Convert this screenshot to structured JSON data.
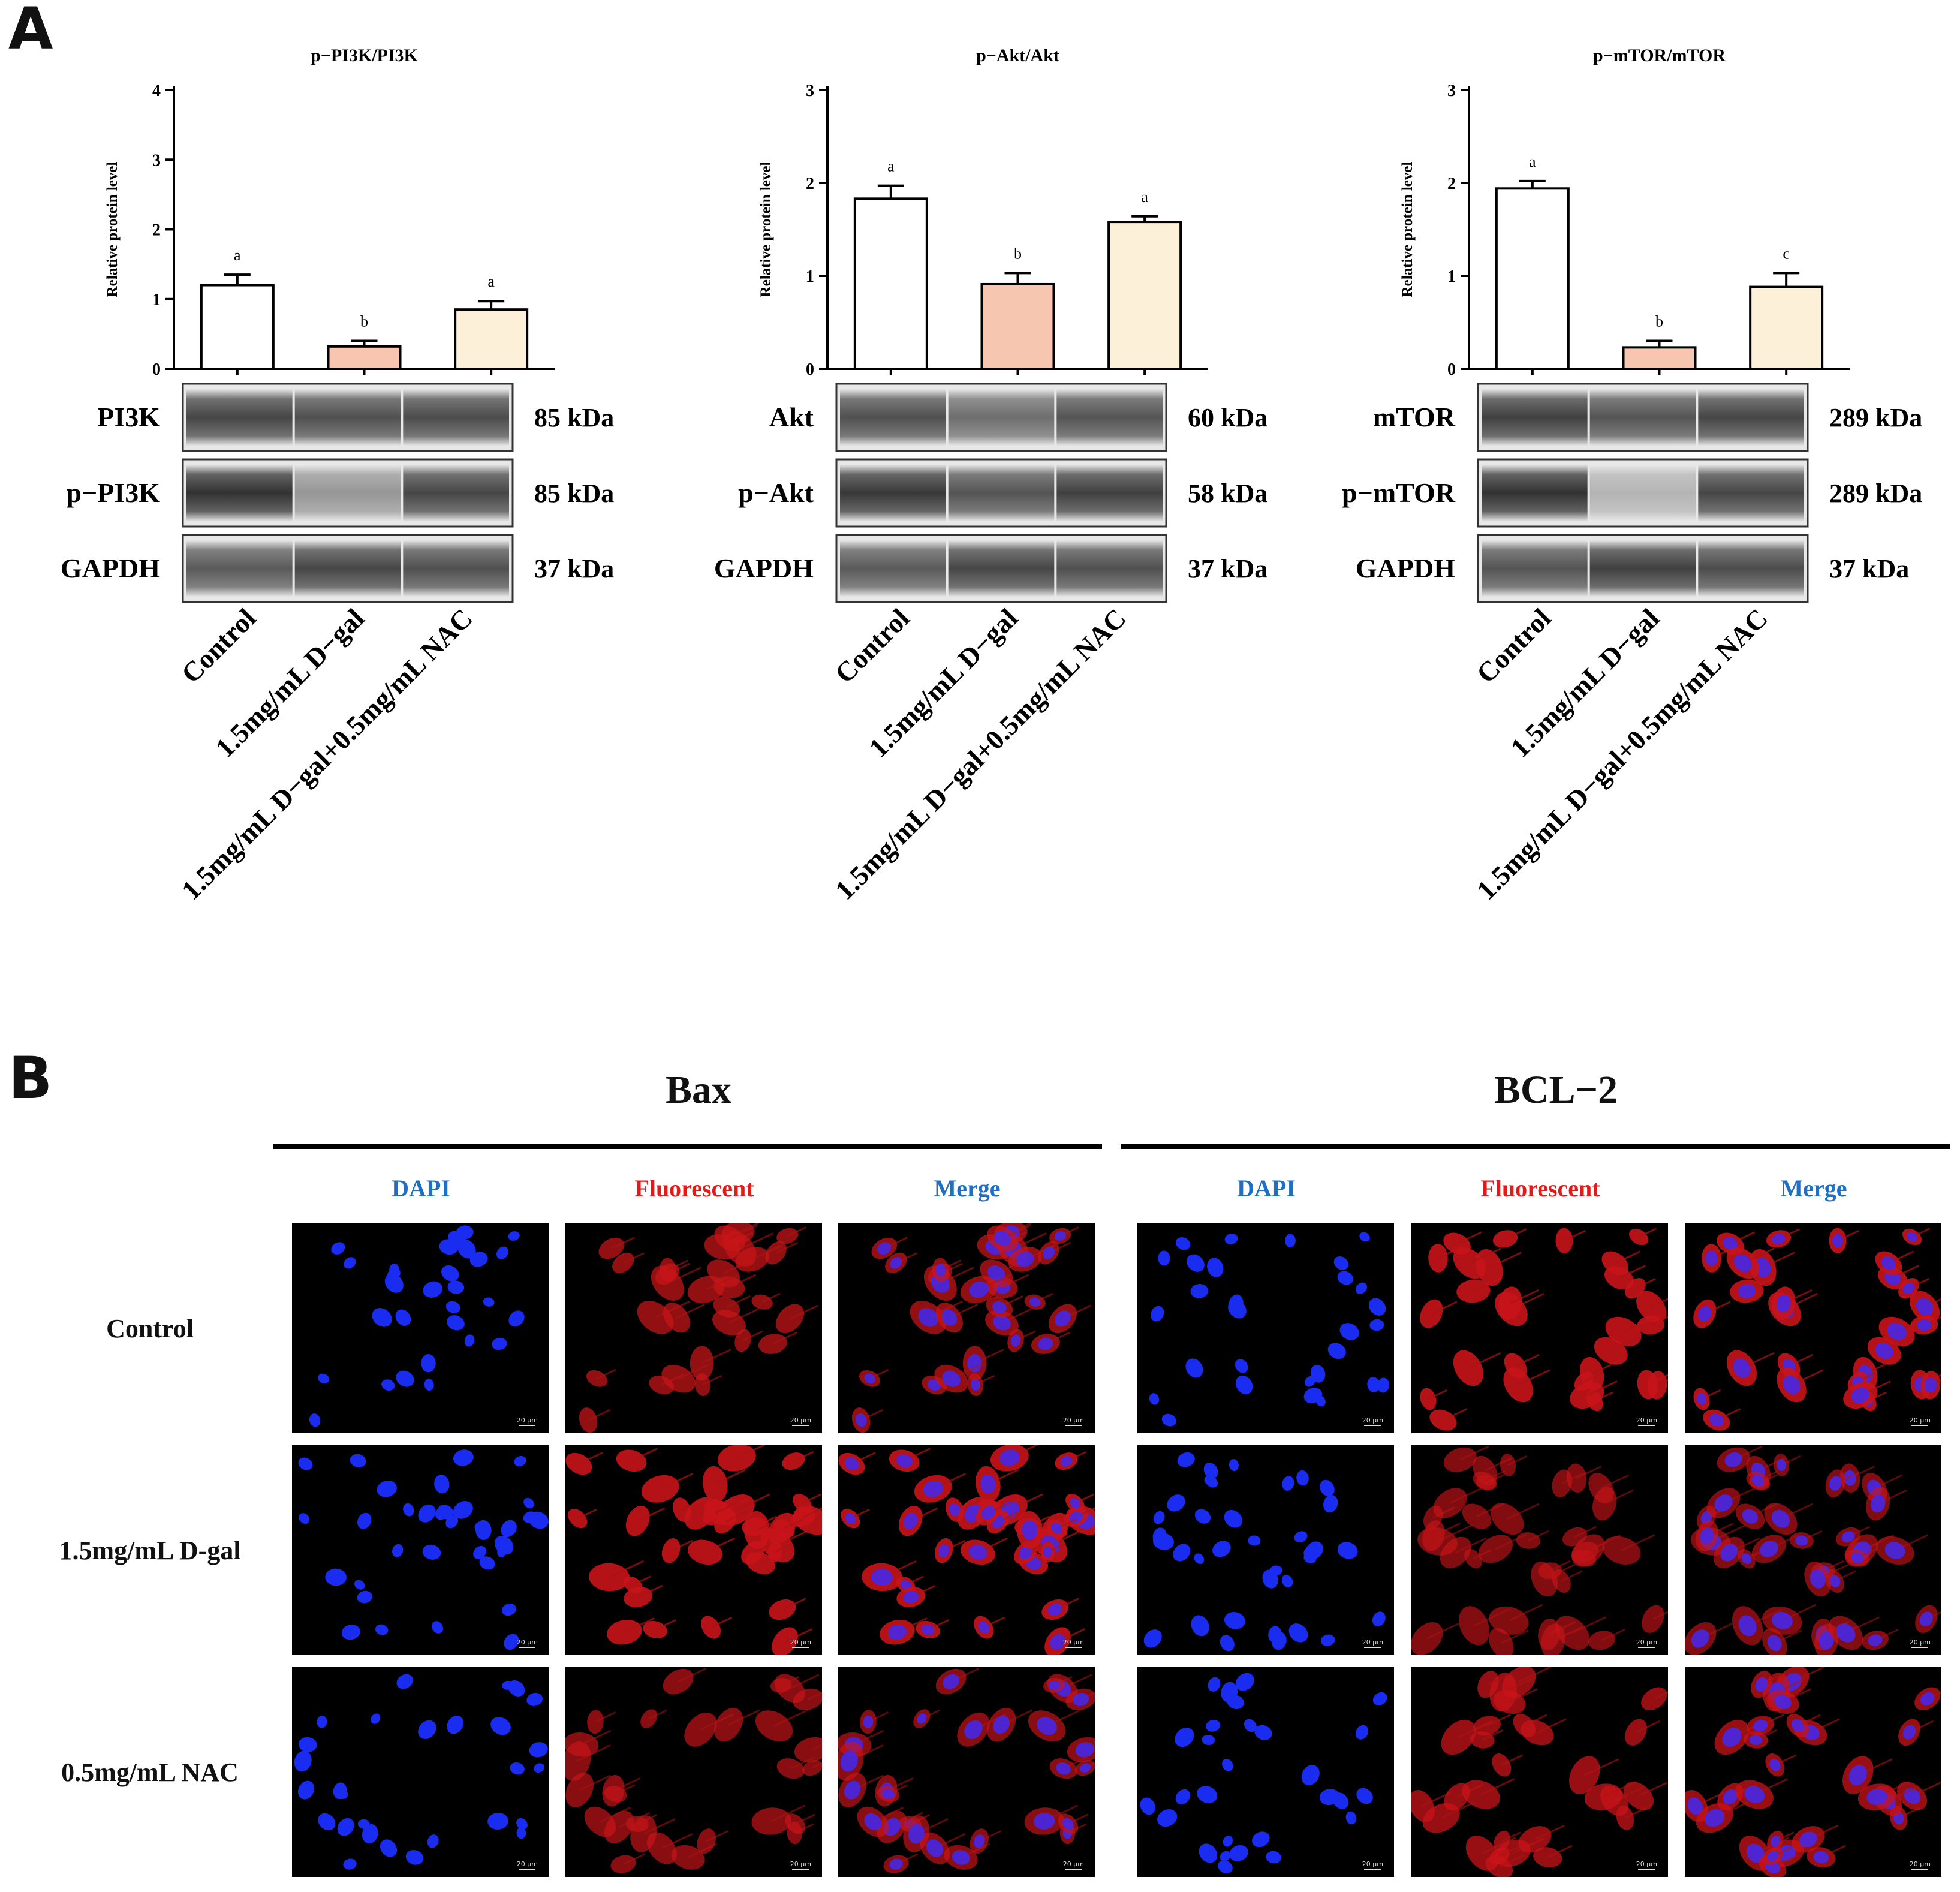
{
  "panel_a": {
    "letter": "A"
  },
  "panel_b": {
    "letter": "B"
  },
  "chart_data": [
    {
      "type": "bar",
      "title": "p−PI3K/PI3K",
      "ylabel": "Relative protein level",
      "ylim": [
        0,
        4
      ],
      "yticks": [
        "0",
        "1",
        "2",
        "3",
        "4"
      ],
      "categories": [
        "Control",
        "1.5mg/mL D−gal",
        "1.5mg/mL D−gal+0.5mg/mL NAC"
      ],
      "values": [
        1.2,
        0.32,
        0.85
      ],
      "errors": [
        0.15,
        0.08,
        0.12
      ],
      "letters": [
        "a",
        "b",
        "a"
      ],
      "colors": [
        "#ffffff",
        "#f7c6b0",
        "#fdf0d8"
      ],
      "blots": [
        {
          "name": "PI3K",
          "kda": "85 kDa",
          "intensity": [
            0.85,
            0.8,
            0.82
          ]
        },
        {
          "name": "p−PI3K",
          "kda": "85 kDa",
          "intensity": [
            0.95,
            0.45,
            0.85
          ]
        },
        {
          "name": "GAPDH",
          "kda": "37 kDa",
          "intensity": [
            0.75,
            0.85,
            0.8
          ]
        }
      ]
    },
    {
      "type": "bar",
      "title": "p−Akt/Akt",
      "ylabel": "Relative protein level",
      "ylim": [
        0,
        3
      ],
      "yticks": [
        "0",
        "1",
        "2",
        "3"
      ],
      "categories": [
        "Control",
        "1.5mg/mL D−gal",
        "1.5mg/mL D−gal+0.5mg/mL NAC"
      ],
      "values": [
        1.83,
        0.91,
        1.58
      ],
      "errors": [
        0.14,
        0.12,
        0.06
      ],
      "letters": [
        "a",
        "b",
        "a"
      ],
      "colors": [
        "#ffffff",
        "#f7c6b0",
        "#fdf0d8"
      ],
      "blots": [
        {
          "name": "Akt",
          "kda": "60 kDa",
          "intensity": [
            0.8,
            0.65,
            0.78
          ]
        },
        {
          "name": "p−Akt",
          "kda": "58 kDa",
          "intensity": [
            0.92,
            0.78,
            0.88
          ]
        },
        {
          "name": "GAPDH",
          "kda": "37 kDa",
          "intensity": [
            0.75,
            0.85,
            0.8
          ]
        }
      ]
    },
    {
      "type": "bar",
      "title": "p−mTOR/mTOR",
      "ylabel": "Relative protein level",
      "ylim": [
        0,
        3
      ],
      "yticks": [
        "0",
        "1",
        "2",
        "3"
      ],
      "categories": [
        "Control",
        "1.5mg/mL D−gal",
        "1.5mg/mL D−gal+0.5mg/mL NAC"
      ],
      "values": [
        1.94,
        0.23,
        0.88
      ],
      "errors": [
        0.08,
        0.07,
        0.15
      ],
      "letters": [
        "a",
        "b",
        "c"
      ],
      "colors": [
        "#ffffff",
        "#f7c6b0",
        "#fdf0d8"
      ],
      "blots": [
        {
          "name": "mTOR",
          "kda": "289 kDa",
          "intensity": [
            0.88,
            0.78,
            0.85
          ]
        },
        {
          "name": "p−mTOR",
          "kda": "289 kDa",
          "intensity": [
            0.95,
            0.3,
            0.85
          ]
        },
        {
          "name": "GAPDH",
          "kda": "37 kDa",
          "intensity": [
            0.78,
            0.88,
            0.82
          ]
        }
      ]
    }
  ],
  "immunofluorescence": {
    "groups": [
      {
        "title": "Bax",
        "columns": [
          "DAPI",
          "Fluorescent",
          "Merge"
        ]
      },
      {
        "title": "BCL−2",
        "columns": [
          "DAPI",
          "Fluorescent",
          "Merge"
        ]
      }
    ],
    "rows": [
      "Control",
      "1.5mg/mL D-gal",
      "0.5mg/mL NAC"
    ],
    "scale_bar": "20 μm",
    "column_colors": {
      "DAPI": "#1f6fc4",
      "Fluorescent": "#e01b1b",
      "Merge": "#1f6fc4"
    },
    "red_intensity": [
      [
        0.7,
        1.0
      ],
      [
        1.0,
        0.55
      ],
      [
        0.6,
        0.75
      ]
    ]
  }
}
